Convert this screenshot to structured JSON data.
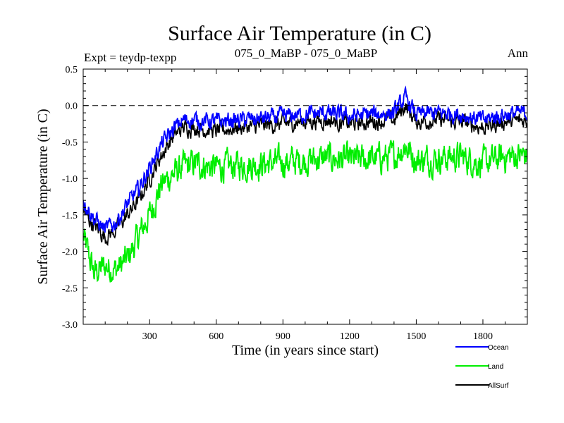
{
  "chart_data": {
    "type": "line",
    "title": "Surface Air Temperature (in C)",
    "subtitle_left": "Expt = teydp-texpp",
    "subtitle_center": "075_0_MaBP - 075_0_MaBP",
    "subtitle_right": "Ann",
    "xlabel": "Time (in years since start)",
    "ylabel": "Surface Air Temperature (in C)",
    "xlim": [
      1,
      2000
    ],
    "ylim": [
      -3.0,
      0.5
    ],
    "xticks": [
      300,
      600,
      900,
      1200,
      1500,
      1800
    ],
    "xtick_labels": [
      "300",
      "600",
      "900",
      "1200",
      "1500",
      "1800"
    ],
    "yticks": [
      -3.0,
      -2.5,
      -2.0,
      -1.5,
      -1.0,
      -0.5,
      0.0,
      0.5
    ],
    "ytick_labels": [
      "-3.0",
      "-2.5",
      "-2.0",
      "-1.5",
      "-1.0",
      "-0.5",
      "0.0",
      "0.5"
    ],
    "reference_line": 0.0,
    "series": [
      {
        "name": "Land",
        "color": "#00ee00",
        "x": [
          1,
          50,
          100,
          150,
          200,
          250,
          300,
          350,
          400,
          450,
          500,
          600,
          700,
          800,
          900,
          1000,
          1100,
          1200,
          1300,
          1400,
          1450,
          1500,
          1600,
          1700,
          1800,
          1900,
          2000
        ],
        "values": [
          -1.8,
          -2.3,
          -2.2,
          -2.25,
          -2.1,
          -1.8,
          -1.5,
          -1.1,
          -0.95,
          -0.85,
          -0.8,
          -0.85,
          -0.82,
          -0.8,
          -0.78,
          -0.75,
          -0.72,
          -0.75,
          -0.73,
          -0.7,
          -0.55,
          -0.75,
          -0.72,
          -0.7,
          -0.8,
          -0.7,
          -0.68
        ]
      },
      {
        "name": "AllSurf",
        "color": "#000000",
        "x": [
          1,
          50,
          100,
          150,
          200,
          250,
          300,
          350,
          400,
          450,
          500,
          600,
          700,
          800,
          900,
          1000,
          1100,
          1200,
          1300,
          1400,
          1450,
          1500,
          1600,
          1700,
          1800,
          1900,
          2000
        ],
        "values": [
          -1.45,
          -1.65,
          -1.8,
          -1.7,
          -1.5,
          -1.3,
          -1.0,
          -0.7,
          -0.45,
          -0.3,
          -0.3,
          -0.35,
          -0.3,
          -0.28,
          -0.25,
          -0.22,
          -0.2,
          -0.25,
          -0.22,
          -0.2,
          0.0,
          -0.22,
          -0.2,
          -0.22,
          -0.3,
          -0.22,
          -0.2
        ]
      },
      {
        "name": "Ocean",
        "color": "#0000ff",
        "x": [
          1,
          50,
          100,
          150,
          200,
          250,
          300,
          350,
          400,
          450,
          500,
          600,
          700,
          800,
          900,
          1000,
          1100,
          1200,
          1300,
          1400,
          1450,
          1500,
          1600,
          1700,
          1800,
          1900,
          2000
        ],
        "values": [
          -1.3,
          -1.55,
          -1.7,
          -1.6,
          -1.35,
          -1.15,
          -0.85,
          -0.55,
          -0.35,
          -0.2,
          -0.2,
          -0.22,
          -0.2,
          -0.18,
          -0.15,
          -0.12,
          -0.1,
          -0.15,
          -0.12,
          -0.1,
          0.1,
          -0.12,
          -0.1,
          -0.12,
          -0.2,
          -0.12,
          -0.1
        ]
      }
    ],
    "legend": {
      "placement": "bottom-right",
      "order": [
        "Ocean",
        "Land",
        "AllSurf"
      ]
    }
  }
}
